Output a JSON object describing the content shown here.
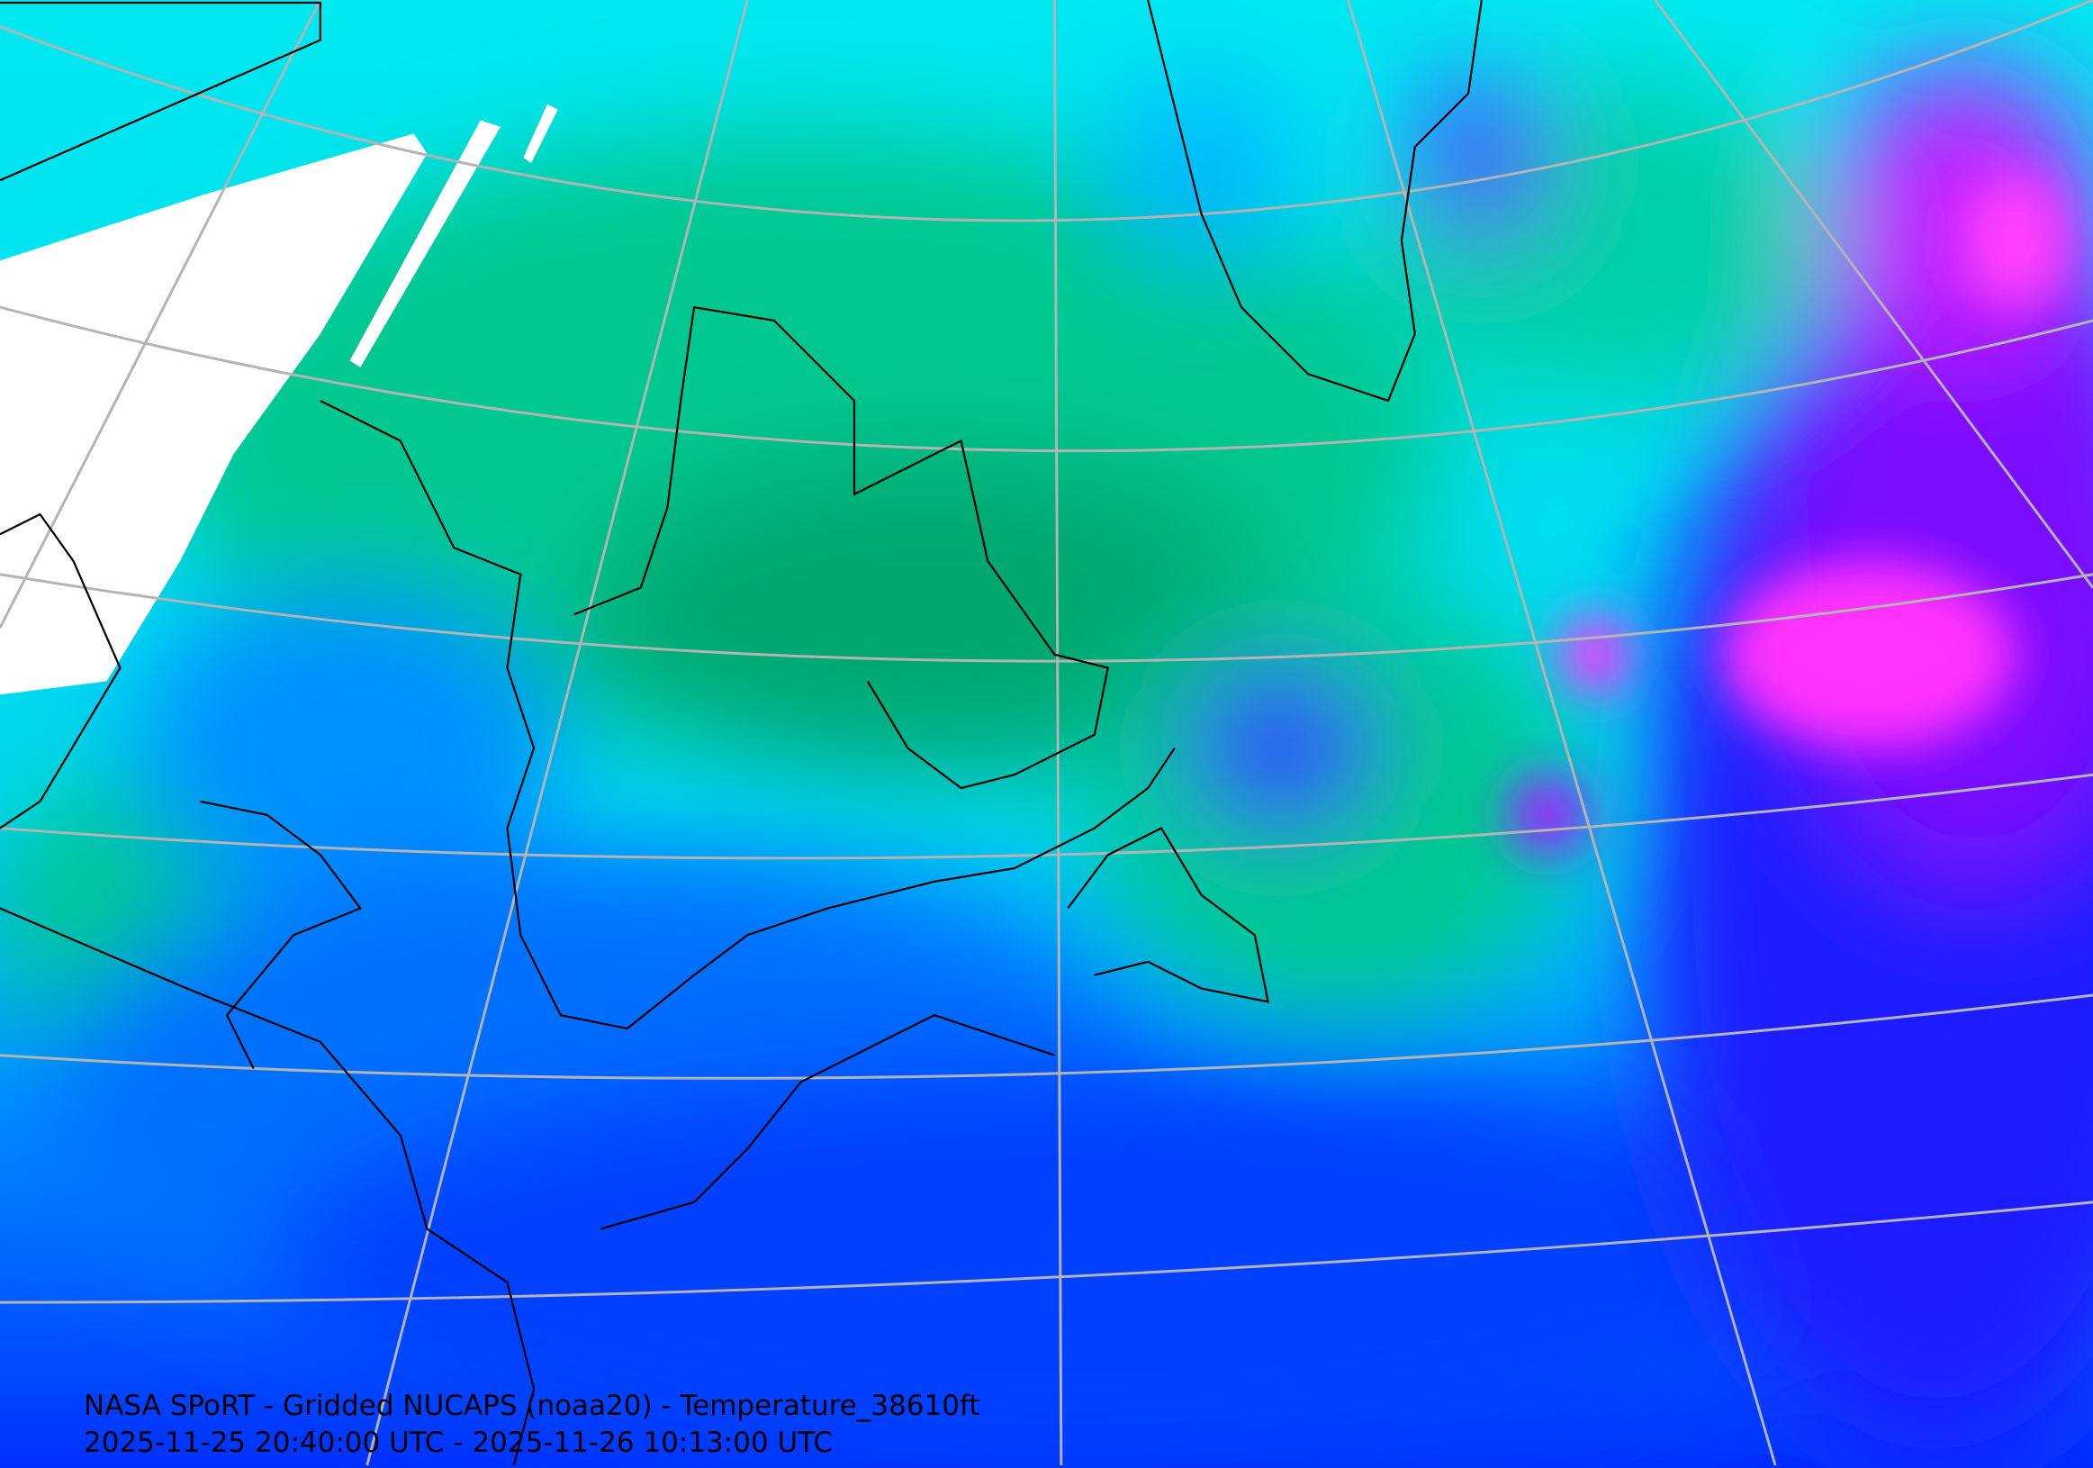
{
  "map": {
    "title": "NASA SPoRT - Gridded NUCAPS (noaa20) - Temperature_38610ft",
    "time_range": "2025-11-25 20:40:00 UTC - 2025-11-26 10:13:00 UTC",
    "colors": {
      "warm_green": "#00b070",
      "teal": "#00e0c0",
      "cyan": "#00f0f0",
      "light_blue": "#00a0ff",
      "blue": "#0040ff",
      "deep_blue": "#1010ff",
      "violet": "#8000ff",
      "magenta": "#ff20ff",
      "no_data": "#ffffff",
      "graticule": "#b4b4b4",
      "coastline": "#000000"
    }
  }
}
